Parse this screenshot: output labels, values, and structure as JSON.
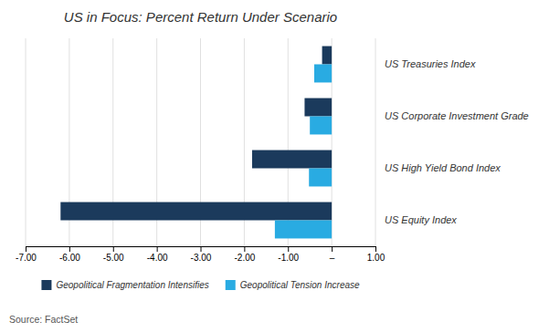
{
  "chart_data": {
    "type": "bar",
    "orientation": "horizontal",
    "title": "US in Focus: Percent Return Under Scenario",
    "categories": [
      "US Equity Index",
      "US High Yield Bond Index",
      "US Corporate Investment Grade",
      "US Treasuries Index"
    ],
    "series": [
      {
        "name": "Geopolitical Fragmentation Intensifies",
        "color": "#1B3A5C",
        "values": [
          -6.2,
          -1.82,
          -0.62,
          -0.22
        ]
      },
      {
        "name": "Geopolitical Tension Increase",
        "color": "#29ABE2",
        "values": [
          -1.3,
          -0.52,
          -0.5,
          -0.4
        ]
      }
    ],
    "xlim": [
      -7.0,
      1.0
    ],
    "xticks": [
      {
        "value": -7.0,
        "label": "-7.00"
      },
      {
        "value": -6.0,
        "label": "-6.00"
      },
      {
        "value": -5.0,
        "label": "-5.00"
      },
      {
        "value": -4.0,
        "label": "-4.00"
      },
      {
        "value": -3.0,
        "label": "-3.00"
      },
      {
        "value": -2.0,
        "label": "-2.00"
      },
      {
        "value": -1.0,
        "label": "-1.00"
      },
      {
        "value": 0.0,
        "label": "–"
      },
      {
        "value": 1.0,
        "label": "1.00"
      }
    ],
    "grid": true,
    "legend": "bottom",
    "annotations": [
      "Source: FactSet"
    ]
  }
}
